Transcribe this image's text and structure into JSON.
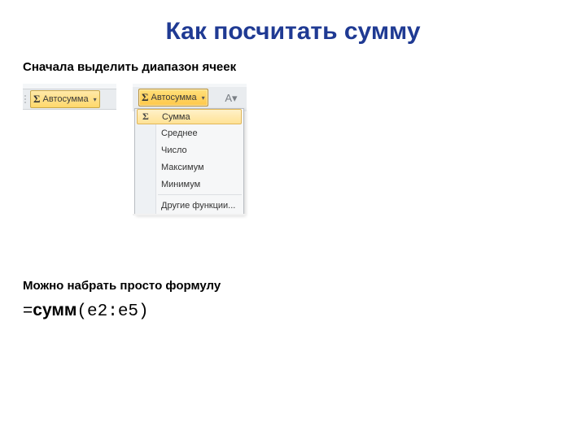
{
  "title": "Как посчитать сумму",
  "subtitle": "Сначала выделить диапазон ячеек",
  "ribbon": {
    "autosum_label": "Автосумма",
    "sigma": "Σ",
    "dropdown_glyph": "▾",
    "sort_glyph": "A▾"
  },
  "menu": {
    "items": [
      {
        "label": "Сумма",
        "icon": "Σ",
        "highlighted": true
      },
      {
        "label": "Среднее",
        "icon": "",
        "highlighted": false
      },
      {
        "label": "Число",
        "icon": "",
        "highlighted": false
      },
      {
        "label": "Максимум",
        "icon": "",
        "highlighted": false
      },
      {
        "label": "Минимум",
        "icon": "",
        "highlighted": false
      }
    ],
    "footer": "Другие функции..."
  },
  "paragraph2": "Можно набрать просто формулу",
  "formula": {
    "eq": "=",
    "fn": "сумм",
    "args": "(е2:е5)"
  },
  "colors": {
    "title": "#1f3a93",
    "ribbon_bg": "#e9ecef",
    "button_grad_top": "#ffe9a8",
    "button_grad_bottom": "#ffd86b",
    "button_border": "#c9a84a",
    "menu_bg": "#f6f7f8",
    "menu_border": "#b9bdc2",
    "hover_top": "#fff1c9",
    "hover_bottom": "#ffe295",
    "hover_border": "#e0b659"
  }
}
